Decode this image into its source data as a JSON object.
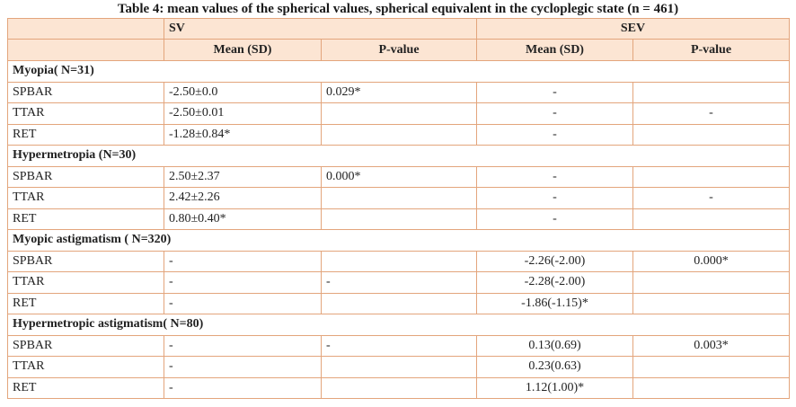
{
  "caption": "Table 4: mean values of the spherical values, spherical equivalent in the cycloplegic state (n = 461)",
  "header": {
    "sv": "SV",
    "sev": "SEV",
    "mean_sd": "Mean (SD)",
    "p_value": "P-value"
  },
  "groups": [
    {
      "title": "Myopia( N=31)",
      "rows": [
        {
          "label": "SPBAR",
          "sv_mean": "-2.50±0.0",
          "sv_p": "0.029*",
          "sev_mean": "-",
          "sev_p": ""
        },
        {
          "label": "TTAR",
          "sv_mean": "-2.50±0.01",
          "sv_p": "",
          "sev_mean": "-",
          "sev_p": "-"
        },
        {
          "label": "RET",
          "sv_mean": "-1.28±0.84*",
          "sv_p": "",
          "sev_mean": "-",
          "sev_p": ""
        }
      ]
    },
    {
      "title": "Hypermetropia (N=30)",
      "rows": [
        {
          "label": "SPBAR",
          "sv_mean": "2.50±2.37",
          "sv_p": "0.000*",
          "sev_mean": "-",
          "sev_p": ""
        },
        {
          "label": "TTAR",
          "sv_mean": "2.42±2.26",
          "sv_p": "",
          "sev_mean": "-",
          "sev_p": "-"
        },
        {
          "label": "RET",
          "sv_mean": "0.80±0.40*",
          "sv_p": "",
          "sev_mean": "-",
          "sev_p": ""
        }
      ]
    },
    {
      "title": "Myopic astigmatism ( N=320)",
      "rows": [
        {
          "label": "SPBAR",
          "sv_mean": "-",
          "sv_p": "",
          "sev_mean": "-2.26(-2.00)",
          "sev_p": "0.000*"
        },
        {
          "label": "TTAR",
          "sv_mean": "-",
          "sv_p": "-",
          "sev_mean": "-2.28(-2.00)",
          "sev_p": ""
        },
        {
          "label": "RET",
          "sv_mean": "-",
          "sv_p": "",
          "sev_mean": "-1.86(-1.15)*",
          "sev_p": ""
        }
      ]
    },
    {
      "title": "Hypermetropic astigmatism( N=80)",
      "rows": [
        {
          "label": "SPBAR",
          "sv_mean": "-",
          "sv_p": "-",
          "sev_mean": "0.13(0.69)",
          "sev_p": "0.003*"
        },
        {
          "label": "TTAR",
          "sv_mean": "-",
          "sv_p": "",
          "sev_mean": "0.23(0.63)",
          "sev_p": ""
        },
        {
          "label": "RET",
          "sv_mean": "-",
          "sv_p": "",
          "sev_mean": "1.12(1.00)*",
          "sev_p": ""
        }
      ]
    }
  ],
  "colors": {
    "header_bg": "#fce5d3",
    "border": "#e3a57c"
  }
}
